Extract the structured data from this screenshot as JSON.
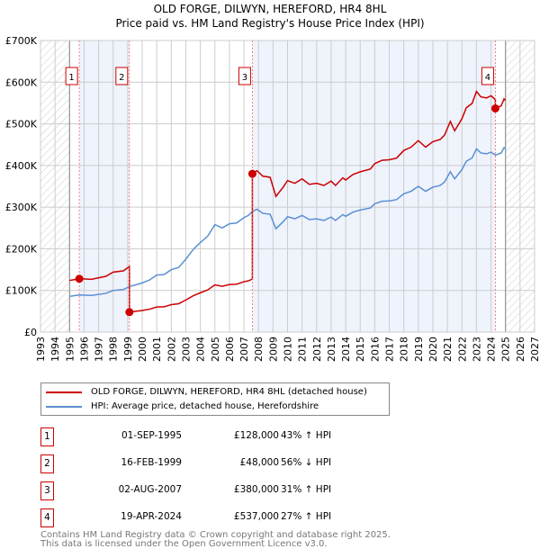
{
  "chart_data": {
    "type": "line",
    "title": "OLD FORGE, DILWYN, HEREFORD, HR4 8HL",
    "subtitle": "Price paid vs. HM Land Registry's House Price Index (HPI)",
    "xlim": [
      1993,
      2027
    ],
    "ylim": [
      0,
      700000
    ],
    "x_ticks": [
      "1993",
      "1994",
      "1995",
      "1996",
      "1997",
      "1998",
      "1999",
      "2000",
      "2001",
      "2002",
      "2003",
      "2004",
      "2005",
      "2006",
      "2007",
      "2008",
      "2009",
      "2010",
      "2011",
      "2012",
      "2013",
      "2014",
      "2015",
      "2016",
      "2017",
      "2018",
      "2019",
      "2020",
      "2021",
      "2022",
      "2023",
      "2024",
      "2025",
      "2026",
      "2027"
    ],
    "y_ticks": [
      {
        "v": 0,
        "label": "£0"
      },
      {
        "v": 100000,
        "label": "£100K"
      },
      {
        "v": 200000,
        "label": "£200K"
      },
      {
        "v": 300000,
        "label": "£300K"
      },
      {
        "v": 400000,
        "label": "£400K"
      },
      {
        "v": 500000,
        "label": "£500K"
      },
      {
        "v": 600000,
        "label": "£600K"
      },
      {
        "v": 700000,
        "label": "£700K"
      }
    ],
    "data_range": [
      1995,
      2025
    ],
    "colors": {
      "property": "#cc0000",
      "hpi": "#5b8fd4",
      "shade": "#eef3fc"
    },
    "hpi_series": {
      "name": "HPI: Average price, detached house, Herefordshire",
      "x": [
        1995.0,
        1995.7,
        1996.5,
        1997.5,
        1998,
        1998.7,
        1999.1,
        2000,
        2000.5,
        2001,
        2001.5,
        2002,
        2002.5,
        2003,
        2003.5,
        2004,
        2004.5,
        2005,
        2005.5,
        2006,
        2006.5,
        2007,
        2007.3,
        2007.6,
        2007.9,
        2008.3,
        2008.8,
        2009.2,
        2009.7,
        2010,
        2010.5,
        2011,
        2011.5,
        2012,
        2012.5,
        2013,
        2013.3,
        2013.8,
        2014,
        2014.5,
        2015,
        2015.7,
        2016,
        2016.5,
        2017,
        2017.5,
        2018,
        2018.5,
        2019,
        2019.5,
        2020,
        2020.5,
        2020.8,
        2021.2,
        2021.5,
        2022,
        2022.3,
        2022.7,
        2023,
        2023.3,
        2023.7,
        2024,
        2024.3,
        2024.7,
        2024.9,
        2025
      ],
      "y": [
        86,
        89,
        88,
        93,
        100,
        102,
        109,
        118,
        125,
        137,
        138,
        150,
        155,
        175,
        198,
        215,
        230,
        258,
        250,
        260,
        262,
        275,
        280,
        290,
        295,
        285,
        283,
        248,
        265,
        277,
        272,
        280,
        270,
        272,
        268,
        276,
        268,
        282,
        278,
        288,
        293,
        298,
        308,
        314,
        315,
        318,
        332,
        338,
        350,
        338,
        348,
        352,
        360,
        385,
        368,
        390,
        410,
        418,
        440,
        430,
        428,
        432,
        425,
        430,
        443,
        440
      ]
    },
    "property_series_name": "OLD FORGE, DILWYN, HEREFORD, HR4 8HL (detached house)",
    "sales": [
      {
        "n": "1",
        "x": 1995.67,
        "date": "01-SEP-1995",
        "value": 128000,
        "price": "£128,000",
        "hpi": "43% ↑ HPI"
      },
      {
        "n": "2",
        "x": 1999.12,
        "date": "16-FEB-1999",
        "value": 48000,
        "price": "£48,000",
        "hpi": "56% ↓ HPI"
      },
      {
        "n": "3",
        "x": 2007.58,
        "date": "02-AUG-2007",
        "value": 380000,
        "price": "£380,000",
        "hpi": "31% ↑ HPI"
      },
      {
        "n": "4",
        "x": 2024.3,
        "date": "19-APR-2024",
        "value": 537000,
        "price": "£537,000",
        "hpi": "27% ↑ HPI"
      }
    ]
  },
  "footer": [
    "Contains HM Land Registry data © Crown copyright and database right 2025.",
    "This data is licensed under the Open Government Licence v3.0."
  ]
}
